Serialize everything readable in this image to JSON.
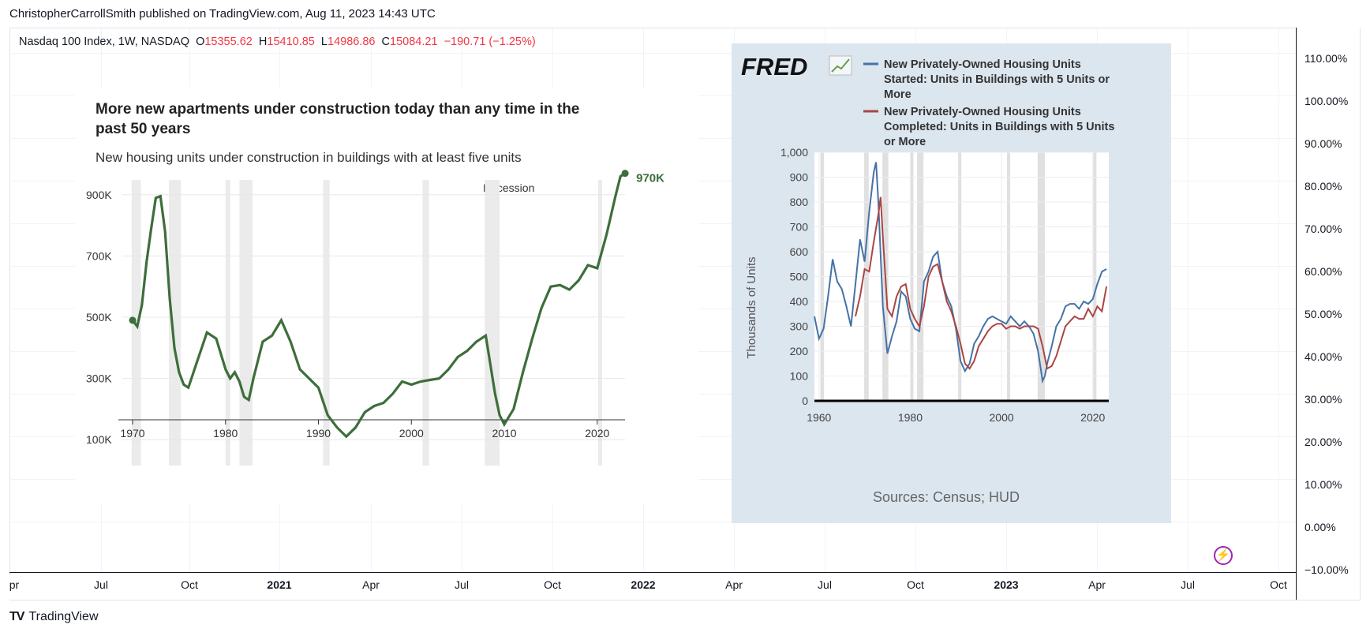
{
  "header": {
    "published_line": "ChristopherCarrollSmith published on TradingView.com, Aug 11, 2023 14:43 UTC"
  },
  "legend": {
    "symbol": "Nasdaq 100 Index, 1W, NASDAQ",
    "o_label": "O",
    "o_value": "15355.62",
    "h_label": "H",
    "h_value": "15410.85",
    "l_label": "L",
    "l_value": "14986.86",
    "c_label": "C",
    "c_value": "15084.21",
    "change": "−190.71 (−1.25%)"
  },
  "right_axis_labels": [
    "110.00%",
    "100.00%",
    "90.00%",
    "80.00%",
    "70.00%",
    "60.00%",
    "50.00%",
    "40.00%",
    "30.00%",
    "20.00%",
    "10.00%",
    "0.00%",
    "−10.00%"
  ],
  "time_axis_labels": [
    {
      "text": "pr",
      "bold": false
    },
    {
      "text": "Jul",
      "bold": false
    },
    {
      "text": "Oct",
      "bold": false
    },
    {
      "text": "2021",
      "bold": true
    },
    {
      "text": "Apr",
      "bold": false
    },
    {
      "text": "Jul",
      "bold": false
    },
    {
      "text": "Oct",
      "bold": false
    },
    {
      "text": "2022",
      "bold": true
    },
    {
      "text": "Apr",
      "bold": false
    },
    {
      "text": "Jul",
      "bold": false
    },
    {
      "text": "Oct",
      "bold": false
    },
    {
      "text": "2023",
      "bold": true
    },
    {
      "text": "Apr",
      "bold": false
    },
    {
      "text": "Jul",
      "bold": false
    },
    {
      "text": "Oct",
      "bold": false
    }
  ],
  "footer": {
    "logo_mark": "TV",
    "logo_text": "TradingView"
  },
  "colors": {
    "green": "#3d6e3b",
    "fred_blue": "#4572a7",
    "fred_red": "#aa4643",
    "recession": "#e6e6e6",
    "fred_bg": "#dce6ef",
    "down_red": "#f23645"
  },
  "chart_data": [
    {
      "type": "line",
      "title": "More new apartments under construction today than any time in the past 50 years",
      "title_line1": "More new apartments under construction today than any time in the",
      "title_line2": "past 50 years",
      "subtitle": "New housing units under construction in buildings with at least five units",
      "annotation_recession": "Recession",
      "end_label": "970K",
      "x_range": [
        1970,
        2023.5
      ],
      "y_range": [
        0,
        1000
      ],
      "x_ticks": [
        1970,
        1980,
        1990,
        2000,
        2010,
        2020
      ],
      "x_tick_labels": [
        "1970",
        "1980",
        "1990",
        "2000",
        "2010",
        "2020"
      ],
      "y_ticks": [
        100,
        300,
        500,
        700,
        900
      ],
      "y_tick_labels": [
        "100K",
        "300K",
        "500K",
        "700K",
        "900K"
      ],
      "recessions": [
        [
          1969.9,
          1970.9
        ],
        [
          1973.9,
          1975.2
        ],
        [
          1980.0,
          1980.5
        ],
        [
          1981.5,
          1982.9
        ],
        [
          1990.5,
          1991.2
        ],
        [
          2001.2,
          2001.9
        ],
        [
          2007.9,
          2009.5
        ],
        [
          2020.1,
          2020.4
        ]
      ],
      "series": [
        {
          "name": "Units under construction (5+ units)",
          "x": [
            1970,
            1970.5,
            1971,
            1971.5,
            1972,
            1972.5,
            1973,
            1973.5,
            1974,
            1974.5,
            1975,
            1975.5,
            1976,
            1977,
            1978,
            1979,
            1980,
            1980.5,
            1981,
            1981.5,
            1982,
            1982.5,
            1983,
            1984,
            1985,
            1986,
            1987,
            1988,
            1989,
            1990,
            1991,
            1992,
            1993,
            1994,
            1995,
            1996,
            1997,
            1998,
            1999,
            2000,
            2001,
            2002,
            2003,
            2004,
            2005,
            2006,
            2007,
            2008,
            2009,
            2009.5,
            2010,
            2011,
            2012,
            2013,
            2014,
            2015,
            2016,
            2017,
            2018,
            2019,
            2020,
            2021,
            2022,
            2022.5,
            2023
          ],
          "y": [
            490,
            470,
            540,
            680,
            790,
            890,
            895,
            780,
            560,
            400,
            320,
            280,
            270,
            360,
            450,
            430,
            330,
            300,
            320,
            290,
            240,
            230,
            300,
            420,
            440,
            490,
            420,
            330,
            300,
            270,
            180,
            140,
            110,
            140,
            190,
            210,
            220,
            250,
            290,
            280,
            290,
            295,
            300,
            330,
            370,
            390,
            420,
            440,
            250,
            180,
            150,
            200,
            320,
            430,
            530,
            600,
            605,
            590,
            620,
            670,
            660,
            770,
            900,
            960,
            970
          ]
        }
      ]
    },
    {
      "type": "line",
      "brand": "FRED",
      "legend_blue": "New Privately-Owned Housing Units Started: Units in Buildings with 5 Units or More",
      "legend_blue_l1": "New Privately-Owned Housing Units",
      "legend_blue_l2": "Started: Units in Buildings with 5 Units or",
      "legend_blue_l3": "More",
      "legend_red": "New Privately-Owned Housing Units Completed: Units in Buildings with 5 Units or More",
      "legend_red_l1": "New Privately-Owned Housing Units",
      "legend_red_l2": "Completed: Units in Buildings with 5 Units",
      "legend_red_l3": "or More",
      "ylabel": "Thousands of Units",
      "source": "Sources: Census; HUD",
      "x_range": [
        1959,
        2023.5
      ],
      "y_range": [
        0,
        1000
      ],
      "x_ticks": [
        1960,
        1980,
        2000,
        2020
      ],
      "x_tick_labels": [
        "1960",
        "1980",
        "2000",
        "2020"
      ],
      "y_ticks": [
        0,
        100,
        200,
        300,
        400,
        500,
        600,
        700,
        800,
        900,
        1000
      ],
      "y_tick_labels": [
        "0",
        "100",
        "200",
        "300",
        "400",
        "500",
        "600",
        "700",
        "800",
        "900",
        "1,000"
      ],
      "recessions": [
        [
          1960.3,
          1961.1
        ],
        [
          1969.9,
          1970.9
        ],
        [
          1973.9,
          1975.2
        ],
        [
          1980.0,
          1980.5
        ],
        [
          1981.5,
          1982.9
        ],
        [
          1990.5,
          1991.2
        ],
        [
          2001.2,
          2001.9
        ],
        [
          2007.9,
          2009.5
        ],
        [
          2020.1,
          2020.4
        ]
      ],
      "series": [
        {
          "name": "Started",
          "x": [
            1959,
            1960,
            1961,
            1962,
            1963,
            1964,
            1965,
            1966,
            1967,
            1968,
            1969,
            1970,
            1971,
            1972,
            1972.5,
            1973,
            1974,
            1975,
            1976,
            1977,
            1978,
            1979,
            1980,
            1981,
            1982,
            1983,
            1984,
            1985,
            1986,
            1987,
            1988,
            1989,
            1990,
            1991,
            1992,
            1993,
            1994,
            1995,
            1996,
            1997,
            1998,
            1999,
            2000,
            2001,
            2002,
            2003,
            2004,
            2005,
            2006,
            2007,
            2008,
            2009,
            2009.5,
            2010,
            2011,
            2012,
            2013,
            2014,
            2015,
            2016,
            2017,
            2018,
            2019,
            2020,
            2021,
            2022,
            2023
          ],
          "y": [
            340,
            250,
            290,
            420,
            570,
            480,
            450,
            380,
            300,
            470,
            650,
            560,
            760,
            920,
            960,
            800,
            380,
            190,
            260,
            320,
            440,
            420,
            330,
            290,
            280,
            480,
            520,
            580,
            600,
            480,
            420,
            380,
            290,
            160,
            120,
            150,
            230,
            260,
            300,
            330,
            340,
            330,
            320,
            310,
            340,
            320,
            300,
            320,
            300,
            270,
            200,
            80,
            100,
            150,
            220,
            300,
            330,
            380,
            390,
            390,
            370,
            400,
            390,
            410,
            470,
            520,
            530
          ]
        },
        {
          "name": "Completed",
          "x": [
            1968,
            1969,
            1970,
            1971,
            1972,
            1973,
            1973.5,
            1974,
            1975,
            1976,
            1977,
            1978,
            1979,
            1980,
            1981,
            1982,
            1983,
            1984,
            1985,
            1986,
            1987,
            1988,
            1989,
            1990,
            1991,
            1992,
            1993,
            1994,
            1995,
            1996,
            1997,
            1998,
            1999,
            2000,
            2001,
            2002,
            2003,
            2004,
            2005,
            2006,
            2007,
            2008,
            2009,
            2010,
            2011,
            2012,
            2013,
            2014,
            2015,
            2016,
            2017,
            2018,
            2019,
            2020,
            2021,
            2022,
            2023
          ],
          "y": [
            340,
            420,
            530,
            520,
            640,
            750,
            820,
            660,
            370,
            340,
            420,
            460,
            470,
            370,
            330,
            300,
            380,
            500,
            540,
            550,
            480,
            400,
            360,
            300,
            230,
            150,
            130,
            160,
            220,
            250,
            280,
            300,
            310,
            310,
            290,
            300,
            300,
            290,
            300,
            300,
            300,
            290,
            220,
            130,
            140,
            180,
            240,
            300,
            320,
            340,
            330,
            330,
            370,
            340,
            380,
            360,
            460
          ]
        }
      ]
    }
  ]
}
